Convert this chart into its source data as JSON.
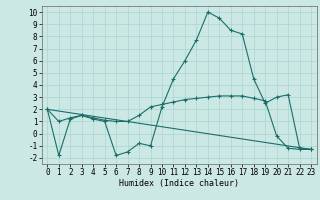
{
  "title": "",
  "xlabel": "Humidex (Indice chaleur)",
  "background_color": "#cce8e4",
  "grid_color": "#aad4d0",
  "line_color": "#1a6e6a",
  "xlim": [
    -0.5,
    23.5
  ],
  "ylim": [
    -2.5,
    10.5
  ],
  "yticks": [
    -2,
    -1,
    0,
    1,
    2,
    3,
    4,
    5,
    6,
    7,
    8,
    9,
    10
  ],
  "xticks": [
    0,
    1,
    2,
    3,
    4,
    5,
    6,
    7,
    8,
    9,
    10,
    11,
    12,
    13,
    14,
    15,
    16,
    17,
    18,
    19,
    20,
    21,
    22,
    23
  ],
  "series1_x": [
    0,
    1,
    2,
    3,
    4,
    5,
    6,
    7,
    8,
    9,
    10,
    11,
    12,
    13,
    14,
    15,
    16,
    17,
    18,
    19,
    20,
    21,
    22,
    23
  ],
  "series1_y": [
    2.0,
    -1.8,
    1.2,
    1.5,
    1.2,
    1.0,
    -1.8,
    -1.5,
    -0.8,
    -1.0,
    2.2,
    4.5,
    6.0,
    7.7,
    10.0,
    9.5,
    8.5,
    8.2,
    4.5,
    2.5,
    3.0,
    3.2,
    -1.2,
    -1.3
  ],
  "series2_x": [
    0,
    1,
    2,
    3,
    4,
    5,
    6,
    7,
    8,
    9,
    10,
    11,
    12,
    13,
    14,
    15,
    16,
    17,
    18,
    19,
    20,
    21,
    22,
    23
  ],
  "series2_y": [
    2.0,
    1.0,
    1.3,
    1.5,
    1.3,
    1.1,
    1.0,
    1.0,
    1.5,
    2.2,
    2.4,
    2.6,
    2.8,
    2.9,
    3.0,
    3.1,
    3.1,
    3.1,
    2.9,
    2.7,
    -0.2,
    -1.2,
    -1.3,
    -1.3
  ],
  "series3_x": [
    0,
    23
  ],
  "series3_y": [
    2.0,
    -1.3
  ]
}
